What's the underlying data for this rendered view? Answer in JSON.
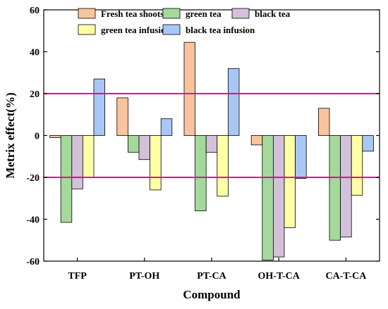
{
  "chart_data": {
    "type": "bar",
    "xlabel": "Compound",
    "ylabel": "Metrix effect(%)",
    "ylim": [
      -60,
      60
    ],
    "yticks": [
      -60,
      -40,
      -20,
      0,
      20,
      40,
      60
    ],
    "categories": [
      "TFP",
      "PT-OH",
      "PT-CA",
      "OH-T-CA",
      "CA-T-CA"
    ],
    "series": [
      {
        "name": "Fresh tea shoots",
        "color": "#F9C49D",
        "values": [
          -1,
          18,
          44.5,
          -4.5,
          13
        ]
      },
      {
        "name": "green tea",
        "color": "#A5D99C",
        "values": [
          -41.5,
          -8,
          -36,
          -59.5,
          -50
        ]
      },
      {
        "name": "black tea",
        "color": "#D3C0DA",
        "values": [
          -25.5,
          -11.5,
          -8,
          -58,
          -48.5
        ]
      },
      {
        "name": "green tea infusion",
        "color": "#FFFFA6",
        "values": [
          -20,
          -26,
          -29,
          -44,
          -28.5
        ]
      },
      {
        "name": "black tea infusion",
        "color": "#A9C7F5",
        "values": [
          27,
          8,
          32,
          -20.5,
          -7.5
        ]
      }
    ],
    "reference_lines": {
      "values": [
        20,
        -20
      ],
      "color": "#E6009F"
    },
    "legend_placement": "top",
    "grid": false
  }
}
